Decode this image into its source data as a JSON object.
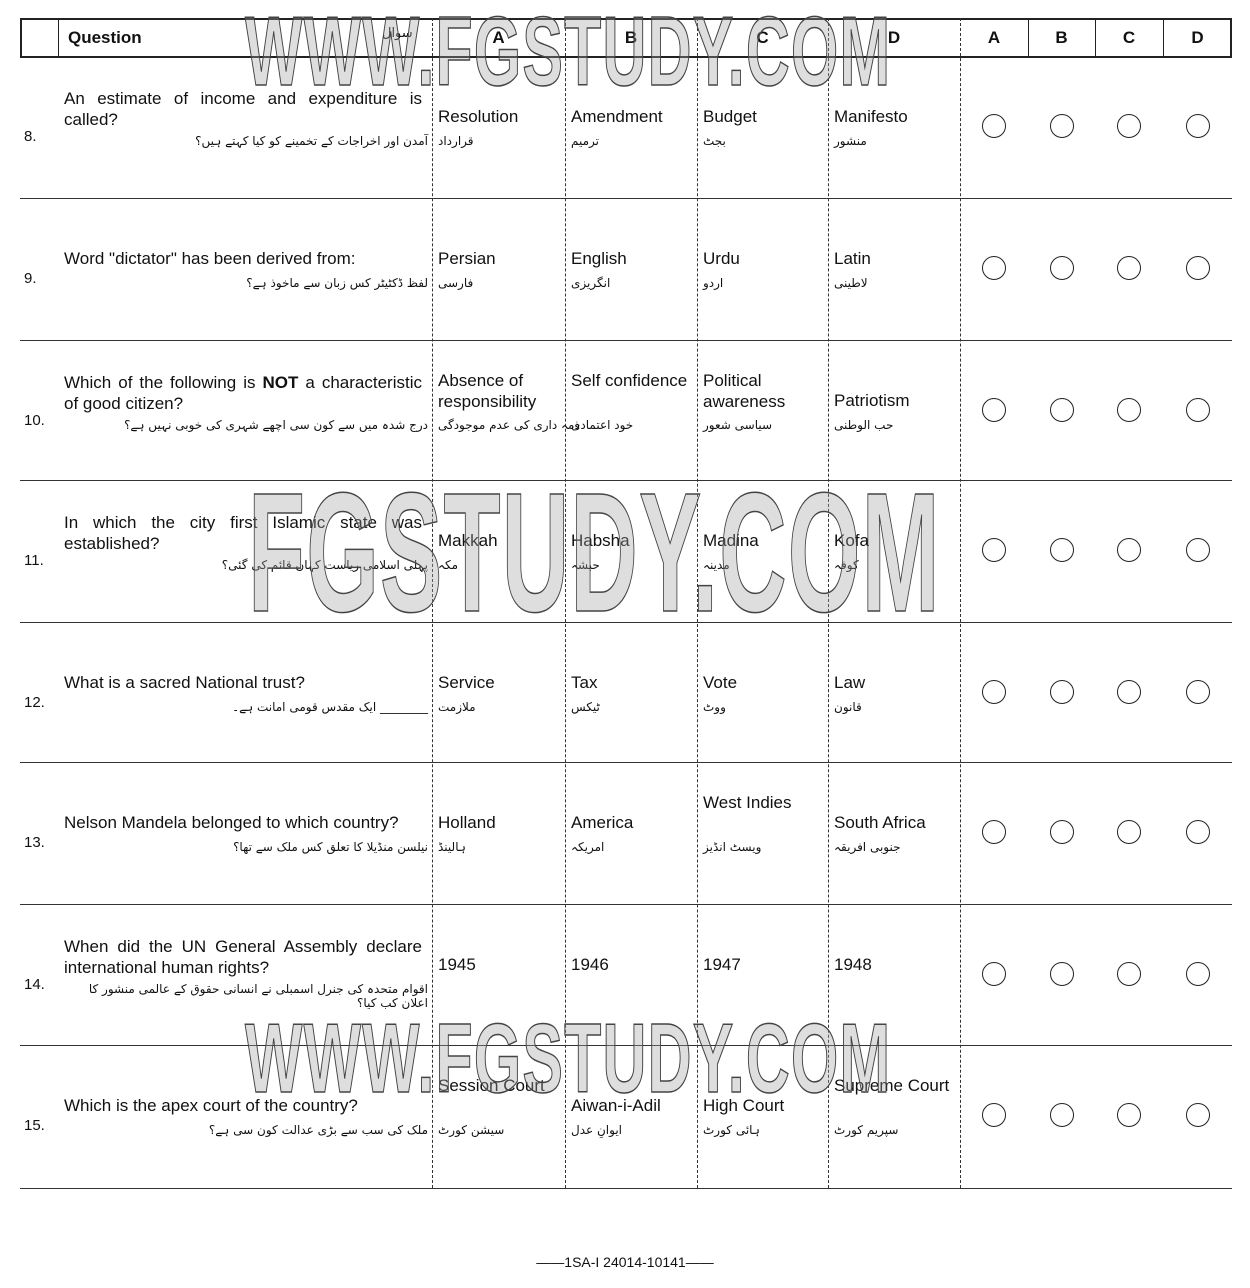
{
  "header": {
    "question": "Question",
    "question_urdu": "سوال",
    "options": [
      "A",
      "B",
      "C",
      "D"
    ],
    "answers": [
      "A",
      "B",
      "C",
      "D"
    ]
  },
  "watermarks": [
    "WWW.FGSTUDY.COM",
    "FGSTUDY.COM",
    "WWW.FGSTUDY.COM"
  ],
  "questions": [
    {
      "num": "8.",
      "text": "An estimate of income and expenditure is called?",
      "urdu": "آمدن اور اخراجات کے تخمینے کو کیا کہتے ہیں؟",
      "options": [
        "Resolution",
        "Amendment",
        "Budget",
        "Manifesto"
      ],
      "options_urdu": [
        "قرارداد",
        "ترمیم",
        "بجٹ",
        "منشور"
      ]
    },
    {
      "num": "9.",
      "text": "Word \"dictator\" has been derived from:",
      "urdu": "لفظ ڈکٹیٹر کس زبان سے ماخوذ ہے؟",
      "options": [
        "Persian",
        "English",
        "Urdu",
        "Latin"
      ],
      "options_urdu": [
        "فارسی",
        "انگریزی",
        "اردو",
        "لاطینی"
      ]
    },
    {
      "num": "10.",
      "text_before": "Which of the following is ",
      "text_bold": "NOT",
      "text_after": " a characteristic of good citizen?",
      "urdu": "درج شدہ میں سے کون سی اچھے شہری کی خوبی نہیں ہے؟",
      "options": [
        "Absence of responsibility",
        "Self confidence",
        "Political awareness",
        "Patriotism"
      ],
      "options_urdu": [
        "ذمہ داری کی عدم موجودگی",
        "خود اعتمادی",
        "سیاسی شعور",
        "حب الوطنی"
      ]
    },
    {
      "num": "11.",
      "text": "In which the city first Islamic state was established?",
      "urdu": "پہلی اسلامی ریاست کہاں قائم کی گئی؟",
      "options": [
        "Makkah",
        "Habsha",
        "Madina",
        "Kofa"
      ],
      "options_urdu": [
        "مکہ",
        "حبشہ",
        "مدینہ",
        "کوفہ"
      ]
    },
    {
      "num": "12.",
      "text": "What is a sacred National trust?",
      "urdu": "________ ایک مقدس قومی امانت ہے۔",
      "options": [
        "Service",
        "Tax",
        "Vote",
        "Law"
      ],
      "options_urdu": [
        "ملازمت",
        "ٹیکس",
        "ووٹ",
        "قانون"
      ]
    },
    {
      "num": "13.",
      "text": "Nelson Mandela belonged to which country?",
      "urdu": "نیلسن منڈیلا کا تعلق کس ملک سے تھا؟",
      "options": [
        "Holland",
        "America",
        "West Indies",
        "South Africa"
      ],
      "options_urdu": [
        "ہالینڈ",
        "امریکہ",
        "ویسٹ انڈیز",
        "جنوبی افریقہ"
      ]
    },
    {
      "num": "14.",
      "text": "When did the UN General Assembly declare international human rights?",
      "urdu": "اقوام متحدہ کی جنرل اسمبلی نے انسانی حقوق کے عالمی منشور کا اعلان کب کیا؟",
      "options": [
        "1945",
        "1946",
        "1947",
        "1948"
      ],
      "options_urdu": [
        "",
        "",
        "",
        ""
      ]
    },
    {
      "num": "15.",
      "text": "Which is the apex court of the country?",
      "urdu": "ملک کی سب سے بڑی عدالت کون سی ہے؟",
      "options": [
        "Session Court",
        "Aiwan-i-Adil",
        "High Court",
        "Supreme Court"
      ],
      "options_urdu": [
        "سیشن کورٹ",
        "ایوانِ عدل",
        "ہائی کورٹ",
        "سپریم کورٹ"
      ]
    }
  ],
  "footer": "1SA-I 24014-10141"
}
